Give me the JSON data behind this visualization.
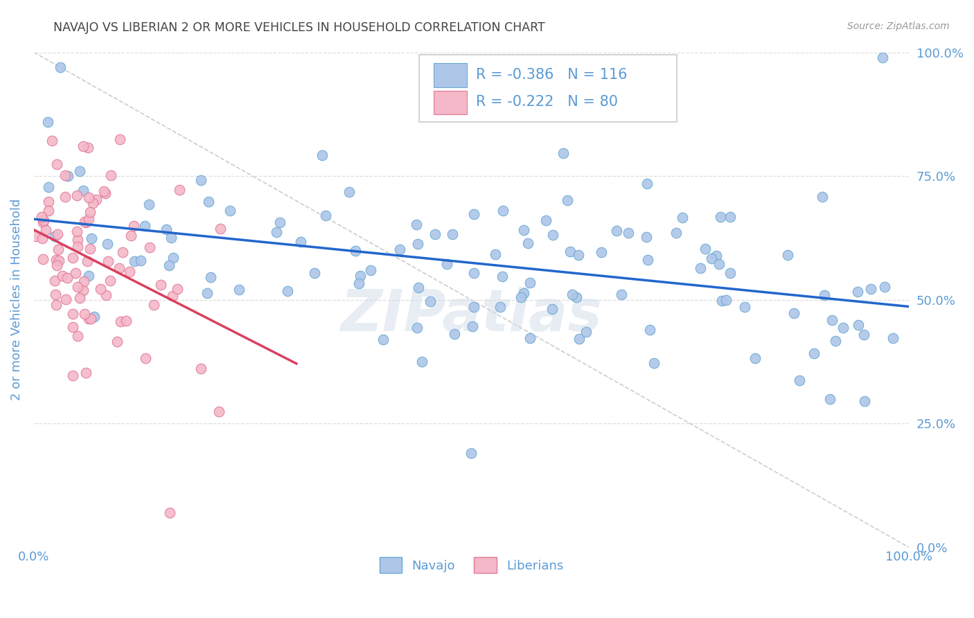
{
  "title": "NAVAJO VS LIBERIAN 2 OR MORE VEHICLES IN HOUSEHOLD CORRELATION CHART",
  "source": "Source: ZipAtlas.com",
  "ylabel": "2 or more Vehicles in Household",
  "yticks": [
    "100.0%",
    "75.0%",
    "50.0%",
    "25.0%",
    "0.0%"
  ],
  "ytick_vals": [
    1.0,
    0.75,
    0.5,
    0.25,
    0.0
  ],
  "navajo_R": "-0.386",
  "navajo_N": "116",
  "liberian_R": "-0.222",
  "liberian_N": "80",
  "navajo_color": "#aec6e8",
  "navajo_edge": "#6aaad4",
  "liberian_color": "#f4b8c8",
  "liberian_edge": "#e07898",
  "trend_navajo_color": "#2266cc",
  "trend_liberian_color": "#d94060",
  "trend_diagonal_color": "#cccccc",
  "background_color": "#ffffff",
  "grid_color": "#dddddd",
  "title_color": "#444444",
  "axis_label_color": "#5b9bd5",
  "legend_text_color": "#5b9bd5",
  "watermark_color": "#d0dde8"
}
